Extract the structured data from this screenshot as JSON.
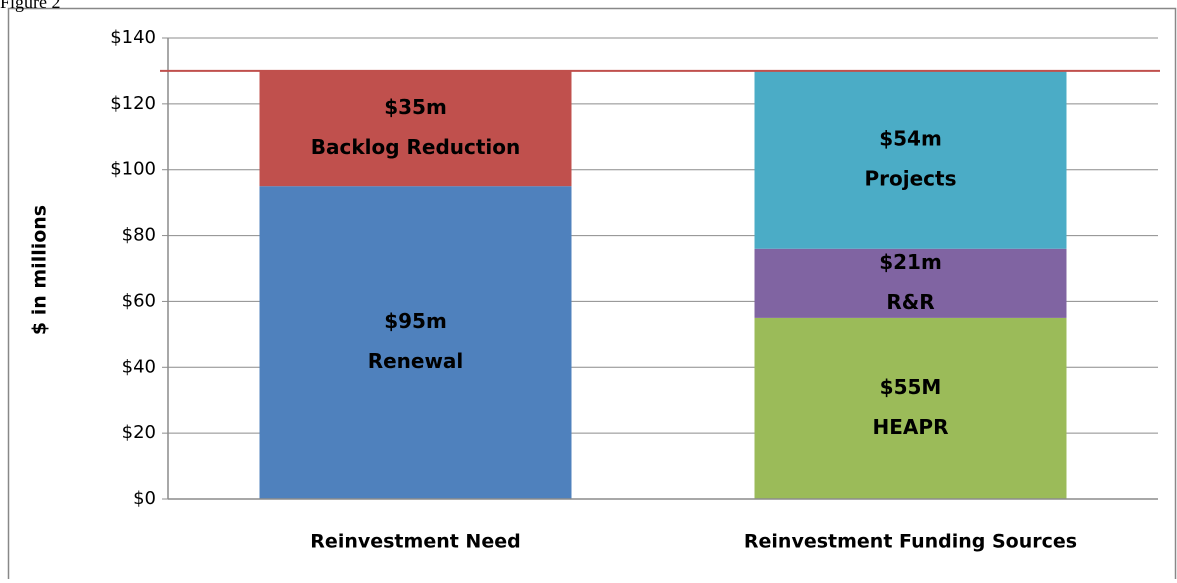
{
  "caption": "Figure 2",
  "chart_data": {
    "type": "stacked_bar",
    "ylabel": "$ in millions",
    "categories": [
      "Reinvestment Need",
      "Reinvestment Funding Sources"
    ],
    "series": [
      {
        "name": "Renewal",
        "color": "#4f81bd",
        "values": [
          95,
          null
        ],
        "value_labels": [
          "$95m",
          null
        ]
      },
      {
        "name": "Backlog Reduction",
        "color": "#c0504d",
        "values": [
          35,
          null
        ],
        "value_labels": [
          "$35m",
          null
        ]
      },
      {
        "name": "HEAPR",
        "color": "#9bbb59",
        "values": [
          null,
          55
        ],
        "value_labels": [
          null,
          "$55M"
        ]
      },
      {
        "name": "R&R",
        "color": "#8064a2",
        "values": [
          null,
          21
        ],
        "value_labels": [
          null,
          "$21m"
        ]
      },
      {
        "name": "Projects",
        "color": "#4bacc6",
        "values": [
          null,
          54
        ],
        "value_labels": [
          null,
          "$54m"
        ]
      }
    ],
    "ylim": [
      0,
      140
    ],
    "yticks": [
      {
        "value": 0,
        "label": "$0"
      },
      {
        "value": 20,
        "label": "$20"
      },
      {
        "value": 40,
        "label": "$40"
      },
      {
        "value": 60,
        "label": "$60"
      },
      {
        "value": 80,
        "label": "$80"
      },
      {
        "value": 100,
        "label": "$100"
      },
      {
        "value": 120,
        "label": "$120"
      },
      {
        "value": 140,
        "label": "$140"
      }
    ],
    "grid": true,
    "reference_line": {
      "value": 130,
      "color": "#c0504d"
    }
  }
}
